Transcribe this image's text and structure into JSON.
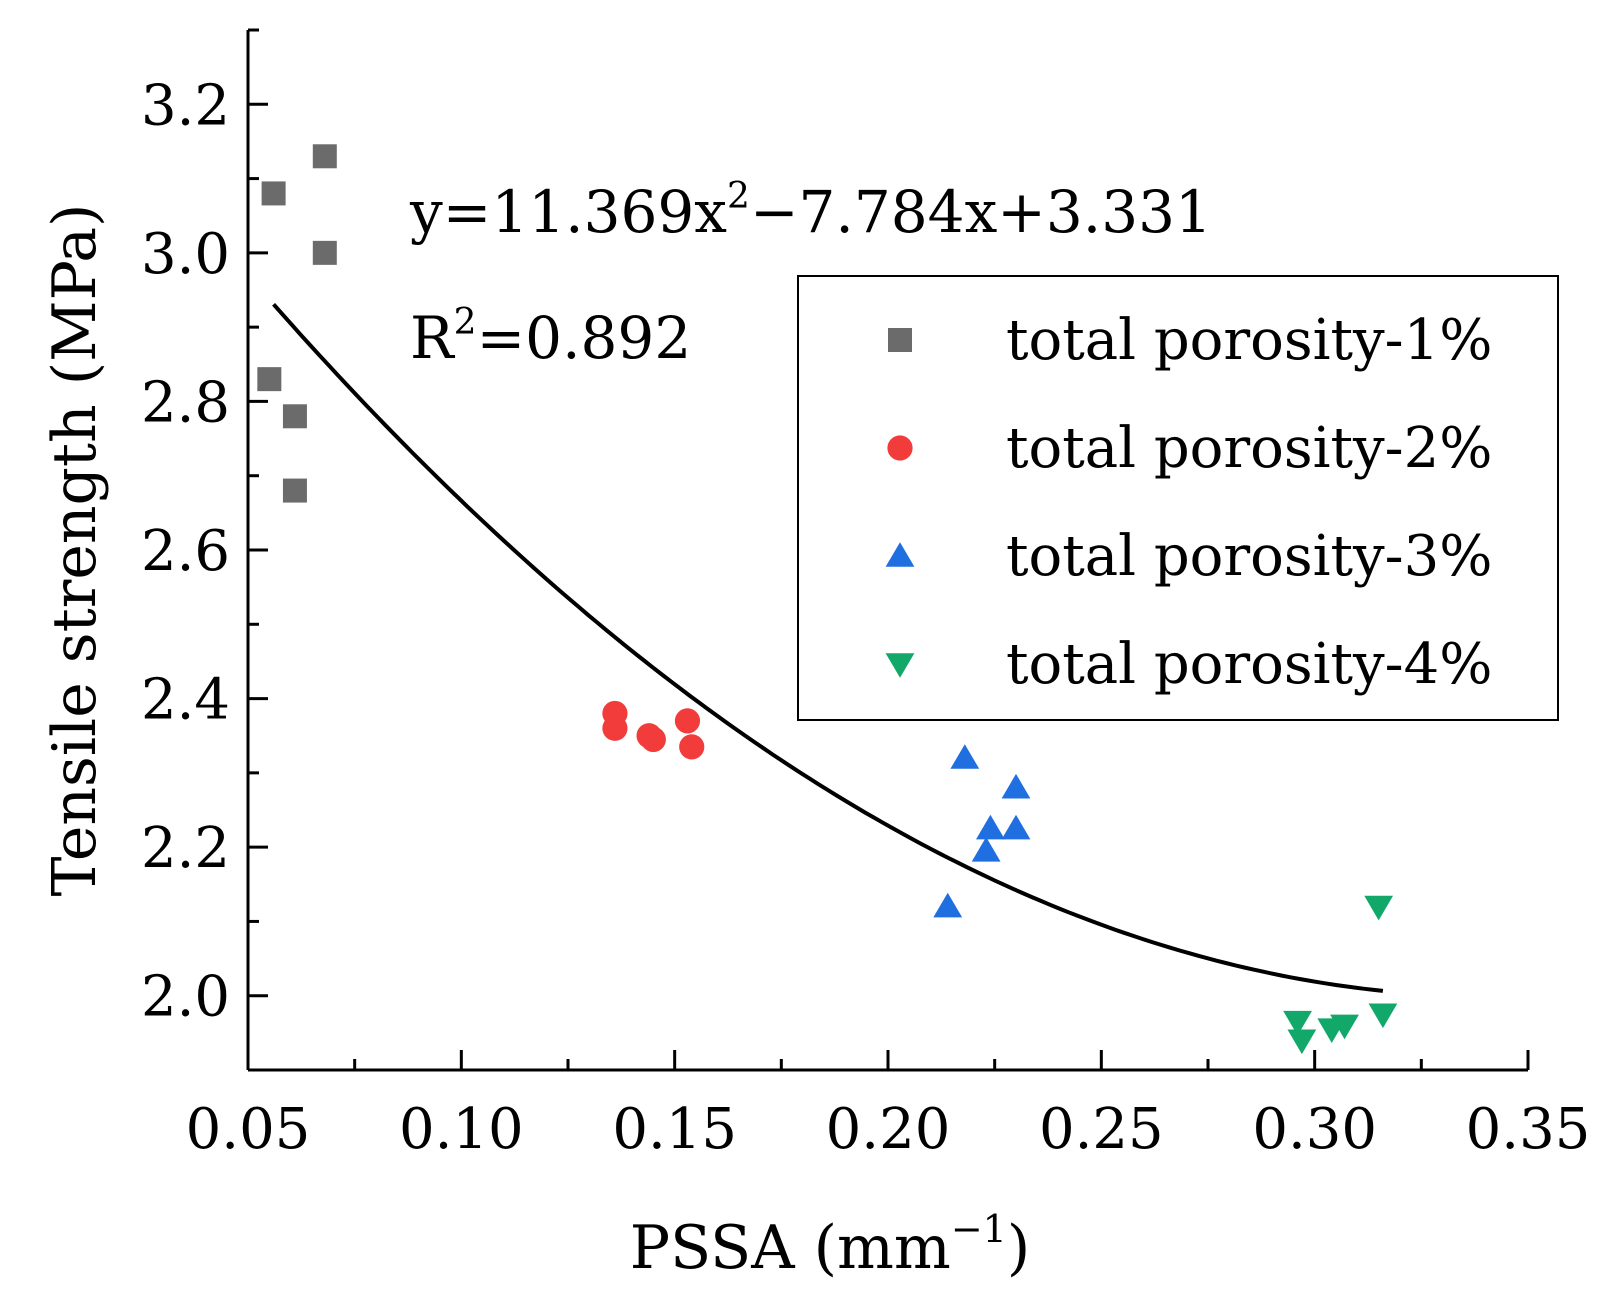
{
  "chart_data": {
    "type": "scatter",
    "xlabel": "PSSA (mm",
    "xlabel_sup": "−1",
    "xlabel_end": ")",
    "ylabel": "Tensile strength (MPa)",
    "xlim": [
      0.05,
      0.35
    ],
    "ylim": [
      1.9,
      3.3
    ],
    "x_ticks": [
      0.05,
      0.1,
      0.15,
      0.2,
      0.25,
      0.3,
      0.35
    ],
    "x_tick_labels": [
      "0.05",
      "0.10",
      "0.15",
      "0.20",
      "0.25",
      "0.30",
      "0.35"
    ],
    "y_ticks": [
      2.0,
      2.2,
      2.4,
      2.6,
      2.8,
      3.0,
      3.2
    ],
    "y_tick_labels": [
      "2.0",
      "2.2",
      "2.4",
      "2.6",
      "2.8",
      "3.0",
      "3.2"
    ],
    "grid": false,
    "legend_position": "top-right",
    "annotations": {
      "equation_prefix": "y=11.369x",
      "equation_sup": "2",
      "equation_suffix": "−7.784x+3.331",
      "r2_prefix": "R",
      "r2_sup": "2",
      "r2_suffix": "=0.892"
    },
    "fit": {
      "type": "quadratic",
      "coefficients": [
        11.369,
        -7.784,
        3.331
      ],
      "x_range": [
        0.056,
        0.316
      ],
      "color": "#000000"
    },
    "series": [
      {
        "name": "total porosity-1%",
        "marker": "square",
        "color": "#6b6b6b",
        "points": [
          [
            0.056,
            3.08
          ],
          [
            0.068,
            3.13
          ],
          [
            0.068,
            3.0
          ],
          [
            0.055,
            2.83
          ],
          [
            0.061,
            2.78
          ],
          [
            0.061,
            2.68
          ]
        ]
      },
      {
        "name": "total porosity-2%",
        "marker": "circle",
        "color": "#f23c3c",
        "points": [
          [
            0.136,
            2.38
          ],
          [
            0.136,
            2.36
          ],
          [
            0.144,
            2.35
          ],
          [
            0.145,
            2.345
          ],
          [
            0.153,
            2.37
          ],
          [
            0.154,
            2.335
          ]
        ]
      },
      {
        "name": "total porosity-3%",
        "marker": "triangle-up",
        "color": "#1f6fe0",
        "points": [
          [
            0.218,
            2.32
          ],
          [
            0.23,
            2.28
          ],
          [
            0.224,
            2.225
          ],
          [
            0.23,
            2.225
          ],
          [
            0.223,
            2.195
          ],
          [
            0.214,
            2.12
          ]
        ]
      },
      {
        "name": "total porosity-4%",
        "marker": "triangle-down",
        "color": "#12a86a",
        "points": [
          [
            0.315,
            2.12
          ],
          [
            0.296,
            1.965
          ],
          [
            0.304,
            1.955
          ],
          [
            0.307,
            1.96
          ],
          [
            0.316,
            1.975
          ],
          [
            0.297,
            1.94
          ]
        ]
      }
    ]
  }
}
